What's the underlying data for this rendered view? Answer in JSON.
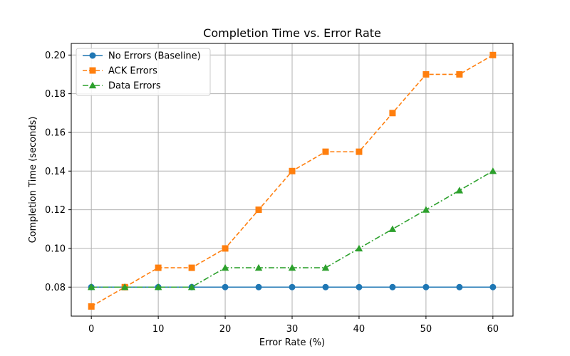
{
  "chart_data": {
    "type": "line",
    "title": "Completion Time vs. Error Rate",
    "xlabel": "Error Rate (%)",
    "ylabel": "Completion Time (seconds)",
    "x": [
      0,
      5,
      10,
      15,
      20,
      25,
      30,
      35,
      40,
      45,
      50,
      55,
      60
    ],
    "xlim": [
      -3,
      63
    ],
    "ylim": [
      0.065,
      0.206
    ],
    "xticks": [
      0,
      10,
      20,
      30,
      40,
      50,
      60
    ],
    "xtick_labels": [
      "0",
      "10",
      "20",
      "30",
      "40",
      "50",
      "60"
    ],
    "yticks": [
      0.08,
      0.1,
      0.12,
      0.14,
      0.16,
      0.18,
      0.2
    ],
    "ytick_labels": [
      "0.08",
      "0.10",
      "0.12",
      "0.14",
      "0.16",
      "0.18",
      "0.20"
    ],
    "grid": true,
    "legend_position": "top-left",
    "series": [
      {
        "name": "No Errors (Baseline)",
        "color": "#1f77b4",
        "linestyle": "solid",
        "marker": "circle",
        "values": [
          0.08,
          0.08,
          0.08,
          0.08,
          0.08,
          0.08,
          0.08,
          0.08,
          0.08,
          0.08,
          0.08,
          0.08,
          0.08
        ]
      },
      {
        "name": "ACK Errors",
        "color": "#ff7f0e",
        "linestyle": "dashed",
        "marker": "square",
        "values": [
          0.07,
          0.08,
          0.09,
          0.09,
          0.1,
          0.12,
          0.14,
          0.15,
          0.15,
          0.17,
          0.19,
          0.19,
          0.2
        ]
      },
      {
        "name": "Data Errors",
        "color": "#2ca02c",
        "linestyle": "dashdot",
        "marker": "triangle",
        "values": [
          0.08,
          0.08,
          0.08,
          0.08,
          0.09,
          0.09,
          0.09,
          0.09,
          0.1,
          0.11,
          0.12,
          0.13,
          0.14
        ]
      }
    ]
  }
}
